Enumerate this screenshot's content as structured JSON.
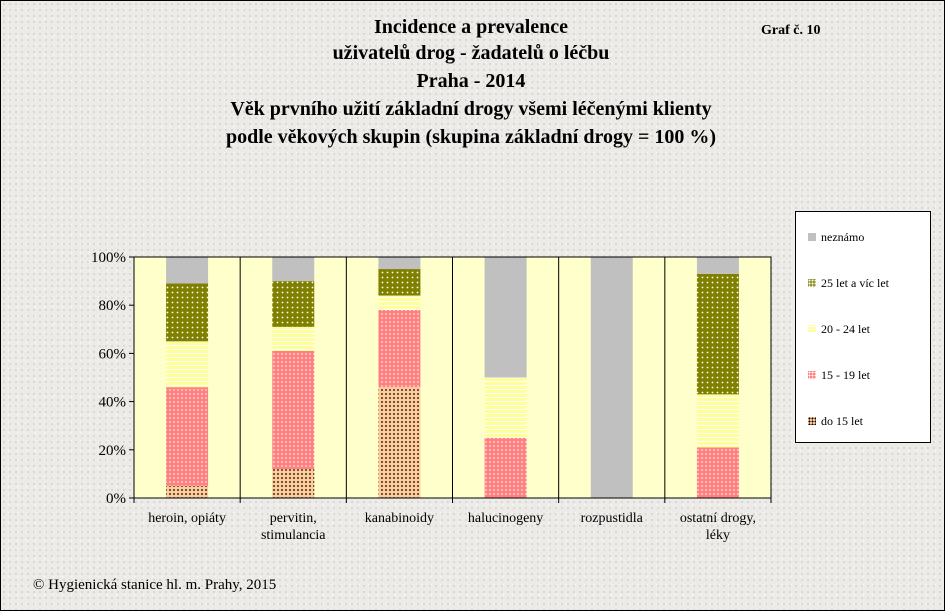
{
  "header": {
    "lines": [
      "Incidence a prevalence",
      "uživatelů  drog - žadatelů  o léčbu",
      "Praha - 2014",
      "Věk prvního  užití  základní  drogy všemi  léčenými  klienty",
      "podle  věkových  skupin  (skupina  základní  drogy = 100 %)"
    ],
    "graf_label": "Graf č. 10"
  },
  "footer": {
    "copyright": "© Hygienická  stanice hl. m. Prahy, 2015"
  },
  "colors": {
    "plot_bg": "#ffffcc",
    "neznamo": "#c0c0c0",
    "age_25_plus": "#808000",
    "age_20_24": "#ffff99",
    "age_15_19": "#ff8080",
    "age_do_15": "#ffcc99"
  },
  "chart_data": {
    "type": "bar",
    "stacked": true,
    "percent": true,
    "categories": [
      [
        "heroin, opiáty"
      ],
      [
        "pervitin,",
        "stimulancia"
      ],
      [
        "kanabinoidy"
      ],
      [
        "halucinogeny"
      ],
      [
        "rozpustidla"
      ],
      [
        "ostatní drogy,",
        "léky"
      ]
    ],
    "series": [
      {
        "name": "do 15 let",
        "key": "do15",
        "values": [
          5,
          12,
          46,
          0,
          0,
          0
        ]
      },
      {
        "name": "15 - 19 let",
        "key": "15",
        "values": [
          41,
          49,
          32,
          25,
          0,
          21
        ]
      },
      {
        "name": "20 - 24 let",
        "key": "20",
        "values": [
          19,
          10,
          6,
          25,
          0,
          22
        ]
      },
      {
        "name": "25 let a víc  let",
        "key": "25",
        "values": [
          24,
          19,
          11,
          0,
          0,
          50
        ]
      },
      {
        "name": "neznámo",
        "key": "neznamo",
        "values": [
          11,
          10,
          5,
          50,
          100,
          7
        ]
      }
    ],
    "legend_order": [
      "neznamo",
      "25",
      "20",
      "15",
      "do15"
    ],
    "yticks": [
      "0%",
      "20%",
      "40%",
      "60%",
      "80%",
      "100%"
    ],
    "ylim": [
      0,
      100
    ],
    "legend_position": "right",
    "grid": true
  }
}
